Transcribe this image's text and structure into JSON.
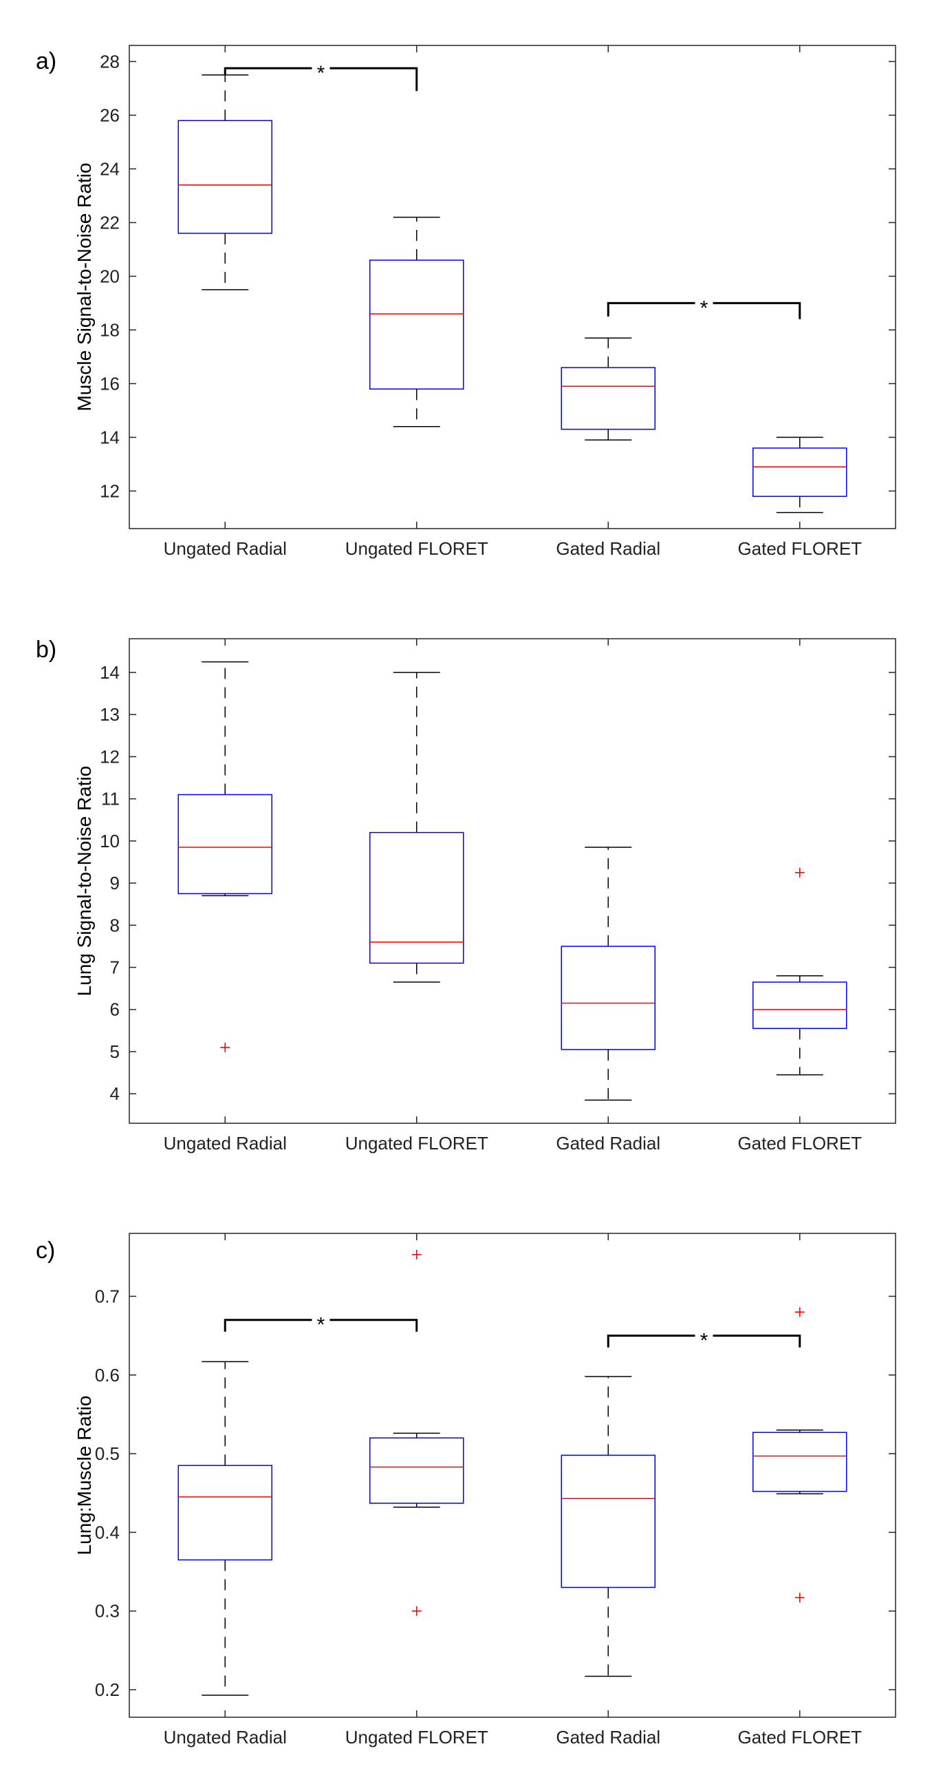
{
  "chart_data": [
    {
      "type": "box",
      "panel": "a)",
      "ylabel": "Muscle Signal-to-Noise Ratio",
      "xlabel": "",
      "categories": [
        "Ungated Radial",
        "Ungated FLORET",
        "Gated Radial",
        "Gated FLORET"
      ],
      "ylim": [
        10.6,
        28.6
      ],
      "yticks": [
        12,
        14,
        16,
        18,
        20,
        22,
        24,
        26,
        28
      ],
      "boxes": [
        {
          "whisker_low": 19.5,
          "q1": 21.6,
          "median": 23.4,
          "q3": 25.8,
          "whisker_high": 27.5,
          "outliers": []
        },
        {
          "whisker_low": 14.4,
          "q1": 15.8,
          "median": 18.6,
          "q3": 20.6,
          "whisker_high": 22.2,
          "outliers": []
        },
        {
          "whisker_low": 13.9,
          "q1": 14.3,
          "median": 15.9,
          "q3": 16.6,
          "whisker_high": 17.7,
          "outliers": []
        },
        {
          "whisker_low": 11.2,
          "q1": 11.8,
          "median": 12.9,
          "q3": 13.6,
          "whisker_high": 14.0,
          "outliers": []
        }
      ],
      "significance": [
        {
          "from": 0,
          "to": 1,
          "level": 27.75,
          "drop_left": 27.5,
          "drop_right": 26.9,
          "label": "*"
        },
        {
          "from": 2,
          "to": 3,
          "level": 19.0,
          "drop_left": 18.5,
          "drop_right": 18.4,
          "label": "*"
        }
      ]
    },
    {
      "type": "box",
      "panel": "b)",
      "ylabel": "Lung Signal-to-Noise Ratio",
      "xlabel": "",
      "categories": [
        "Ungated Radial",
        "Ungated FLORET",
        "Gated Radial",
        "Gated FLORET"
      ],
      "ylim": [
        3.3,
        14.8
      ],
      "yticks": [
        4,
        5,
        6,
        7,
        8,
        9,
        10,
        11,
        12,
        13,
        14
      ],
      "boxes": [
        {
          "whisker_low": 8.7,
          "q1": 8.75,
          "median": 9.85,
          "q3": 11.1,
          "whisker_high": 14.25,
          "outliers": [
            5.1
          ]
        },
        {
          "whisker_low": 6.65,
          "q1": 7.1,
          "median": 7.6,
          "q3": 10.2,
          "whisker_high": 14.0,
          "outliers": []
        },
        {
          "whisker_low": 3.85,
          "q1": 5.05,
          "median": 6.15,
          "q3": 7.5,
          "whisker_high": 9.85,
          "outliers": []
        },
        {
          "whisker_low": 4.45,
          "q1": 5.55,
          "median": 6.0,
          "q3": 6.65,
          "whisker_high": 6.8,
          "outliers": [
            9.25
          ]
        }
      ],
      "significance": []
    },
    {
      "type": "box",
      "panel": "c)",
      "ylabel": "Lung:Muscle Ratio",
      "xlabel": "",
      "categories": [
        "Ungated Radial",
        "Ungated FLORET",
        "Gated Radial",
        "Gated FLORET"
      ],
      "ylim": [
        0.165,
        0.78
      ],
      "yticks": [
        0.2,
        0.3,
        0.4,
        0.5,
        0.6,
        0.7
      ],
      "boxes": [
        {
          "whisker_low": 0.193,
          "q1": 0.365,
          "median": 0.445,
          "q3": 0.485,
          "whisker_high": 0.617,
          "outliers": []
        },
        {
          "whisker_low": 0.432,
          "q1": 0.437,
          "median": 0.483,
          "q3": 0.52,
          "whisker_high": 0.526,
          "outliers": [
            0.753,
            0.3
          ]
        },
        {
          "whisker_low": 0.217,
          "q1": 0.33,
          "median": 0.443,
          "q3": 0.498,
          "whisker_high": 0.598,
          "outliers": []
        },
        {
          "whisker_low": 0.449,
          "q1": 0.452,
          "median": 0.497,
          "q3": 0.527,
          "whisker_high": 0.53,
          "outliers": [
            0.68,
            0.317
          ]
        }
      ],
      "significance": [
        {
          "from": 0,
          "to": 1,
          "level": 0.67,
          "drop_left": 0.655,
          "drop_right": 0.655,
          "label": "*"
        },
        {
          "from": 2,
          "to": 3,
          "level": 0.65,
          "drop_left": 0.635,
          "drop_right": 0.635,
          "label": "*"
        }
      ]
    }
  ],
  "colors": {
    "box": "#0000ff",
    "median": "#ff0000",
    "whisker": "#000000",
    "outlier": "#ff0000",
    "axis": "#262626"
  }
}
